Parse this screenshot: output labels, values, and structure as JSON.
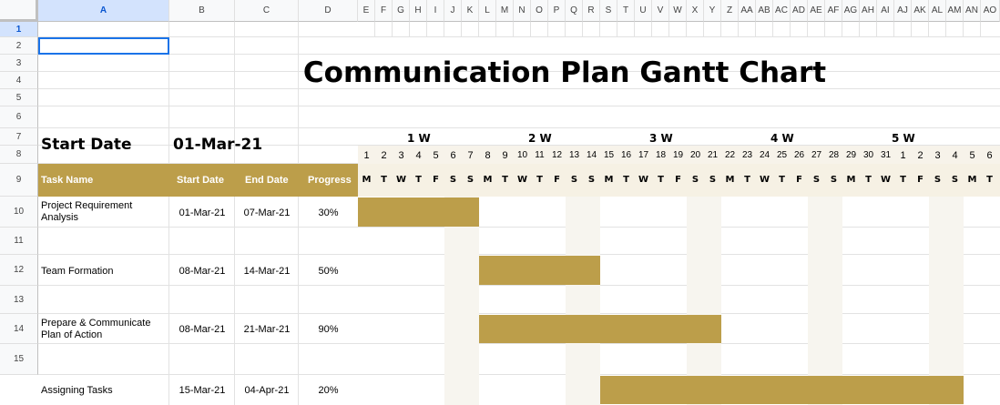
{
  "columns": [
    "A",
    "B",
    "C",
    "D",
    "E",
    "F",
    "G",
    "H",
    "I",
    "J",
    "K",
    "L",
    "M",
    "N",
    "O",
    "P",
    "Q",
    "R",
    "S",
    "T",
    "U",
    "V",
    "W",
    "X",
    "Y",
    "Z",
    "AA",
    "AB",
    "AC",
    "AD",
    "AE",
    "AF",
    "AG",
    "AH",
    "AI",
    "AJ",
    "AK",
    "AL",
    "AM",
    "AN",
    "AO"
  ],
  "rows": [
    "1",
    "2",
    "3",
    "4",
    "5",
    "6",
    "7",
    "8",
    "9",
    "10",
    "11",
    "12",
    "13",
    "14",
    "15"
  ],
  "title": "Communication Plan Gantt Chart",
  "start_date_label": "Start Date",
  "start_date_value": "01-Mar-21",
  "weeks": [
    "1 W",
    "2 W",
    "3 W",
    "4 W",
    "5 W"
  ],
  "day_numbers": [
    "1",
    "2",
    "3",
    "4",
    "5",
    "6",
    "7",
    "8",
    "9",
    "10",
    "11",
    "12",
    "13",
    "14",
    "15",
    "16",
    "17",
    "18",
    "19",
    "20",
    "21",
    "22",
    "23",
    "24",
    "25",
    "26",
    "27",
    "28",
    "29",
    "30",
    "31",
    "1",
    "2",
    "3",
    "4",
    "5",
    "6"
  ],
  "day_letters": [
    "M",
    "T",
    "W",
    "T",
    "F",
    "S",
    "S",
    "M",
    "T",
    "W",
    "T",
    "F",
    "S",
    "S",
    "M",
    "T",
    "W",
    "T",
    "F",
    "S",
    "S",
    "M",
    "T",
    "W",
    "T",
    "F",
    "S",
    "S",
    "M",
    "T",
    "W",
    "T",
    "F",
    "S",
    "S",
    "M",
    "T"
  ],
  "table_header": {
    "task_name": "Task Name",
    "start_date": "Start Date",
    "end_date": "End Date",
    "progress": "Progress"
  },
  "tasks": [
    {
      "name_line1": "Project Requirement",
      "name_line2": "Analysis",
      "start": "01-Mar-21",
      "end": "07-Mar-21",
      "progress": "30%",
      "start_day": 1,
      "end_day": 7
    },
    {
      "name_line1": "Team Formation",
      "name_line2": "",
      "start": "08-Mar-21",
      "end": "14-Mar-21",
      "progress": "50%",
      "start_day": 8,
      "end_day": 14
    },
    {
      "name_line1": "Prepare & Communicate",
      "name_line2": "Plan of Action",
      "start": "08-Mar-21",
      "end": "21-Mar-21",
      "progress": "90%",
      "start_day": 8,
      "end_day": 21
    },
    {
      "name_line1": "Assigning Tasks",
      "name_line2": "",
      "start": "15-Mar-21",
      "end": "04-Apr-21",
      "progress": "20%",
      "start_day": 15,
      "end_day": 35
    }
  ],
  "colors": {
    "accent": "#bc9e4a",
    "selection": "#1a73e8"
  }
}
